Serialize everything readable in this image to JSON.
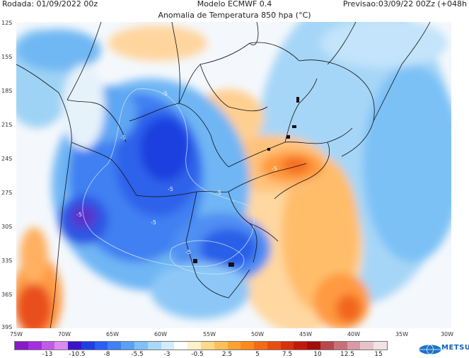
{
  "header": {
    "run": "Rodada: 01/09/2022 00z",
    "model": "Modelo ECMWF 0.4",
    "forecast": "Previsao:03/09/22 00Zz (+048h",
    "title": "Anomalia de Temperatura 850 hpa (°C)"
  },
  "map": {
    "latitude_labels": [
      "12S",
      "15S",
      "18S",
      "21S",
      "24S",
      "27S",
      "30S",
      "33S",
      "36S",
      "39S"
    ],
    "longitude_labels": [
      "75W",
      "70W",
      "65W",
      "60W",
      "55W",
      "50W",
      "45W",
      "40W",
      "35W",
      "30W"
    ],
    "contour_labels": [
      "-5",
      "-5",
      "-5",
      "-5",
      "-5",
      "-5",
      "-5",
      "-5"
    ]
  },
  "colorbar": {
    "labels": [
      "-13",
      "-10.5",
      "-8",
      "-5.5",
      "-3",
      "-0.5",
      "2.5",
      "5",
      "7.5",
      "10",
      "12.5",
      "15"
    ],
    "colors": [
      "#8a18c9",
      "#a62ee0",
      "#c25ae8",
      "#dc8af0",
      "#3b14c9",
      "#1f3ee0",
      "#2b5ef2",
      "#3f80f5",
      "#59a0f7",
      "#7fc0f9",
      "#a9d8fb",
      "#d2ecfd",
      "#ffffff",
      "#fff1c8",
      "#ffd98a",
      "#ffc05a",
      "#ffa232",
      "#ff8a1a",
      "#f56a12",
      "#e84d10",
      "#d8300d",
      "#c2180c",
      "#a20c0c",
      "#b8464b",
      "#c8707a",
      "#d89aa6",
      "#e6c3cc",
      "#f2e2e6"
    ]
  },
  "logo": {
    "name": "METSUL",
    "icon": "globe-icon"
  }
}
